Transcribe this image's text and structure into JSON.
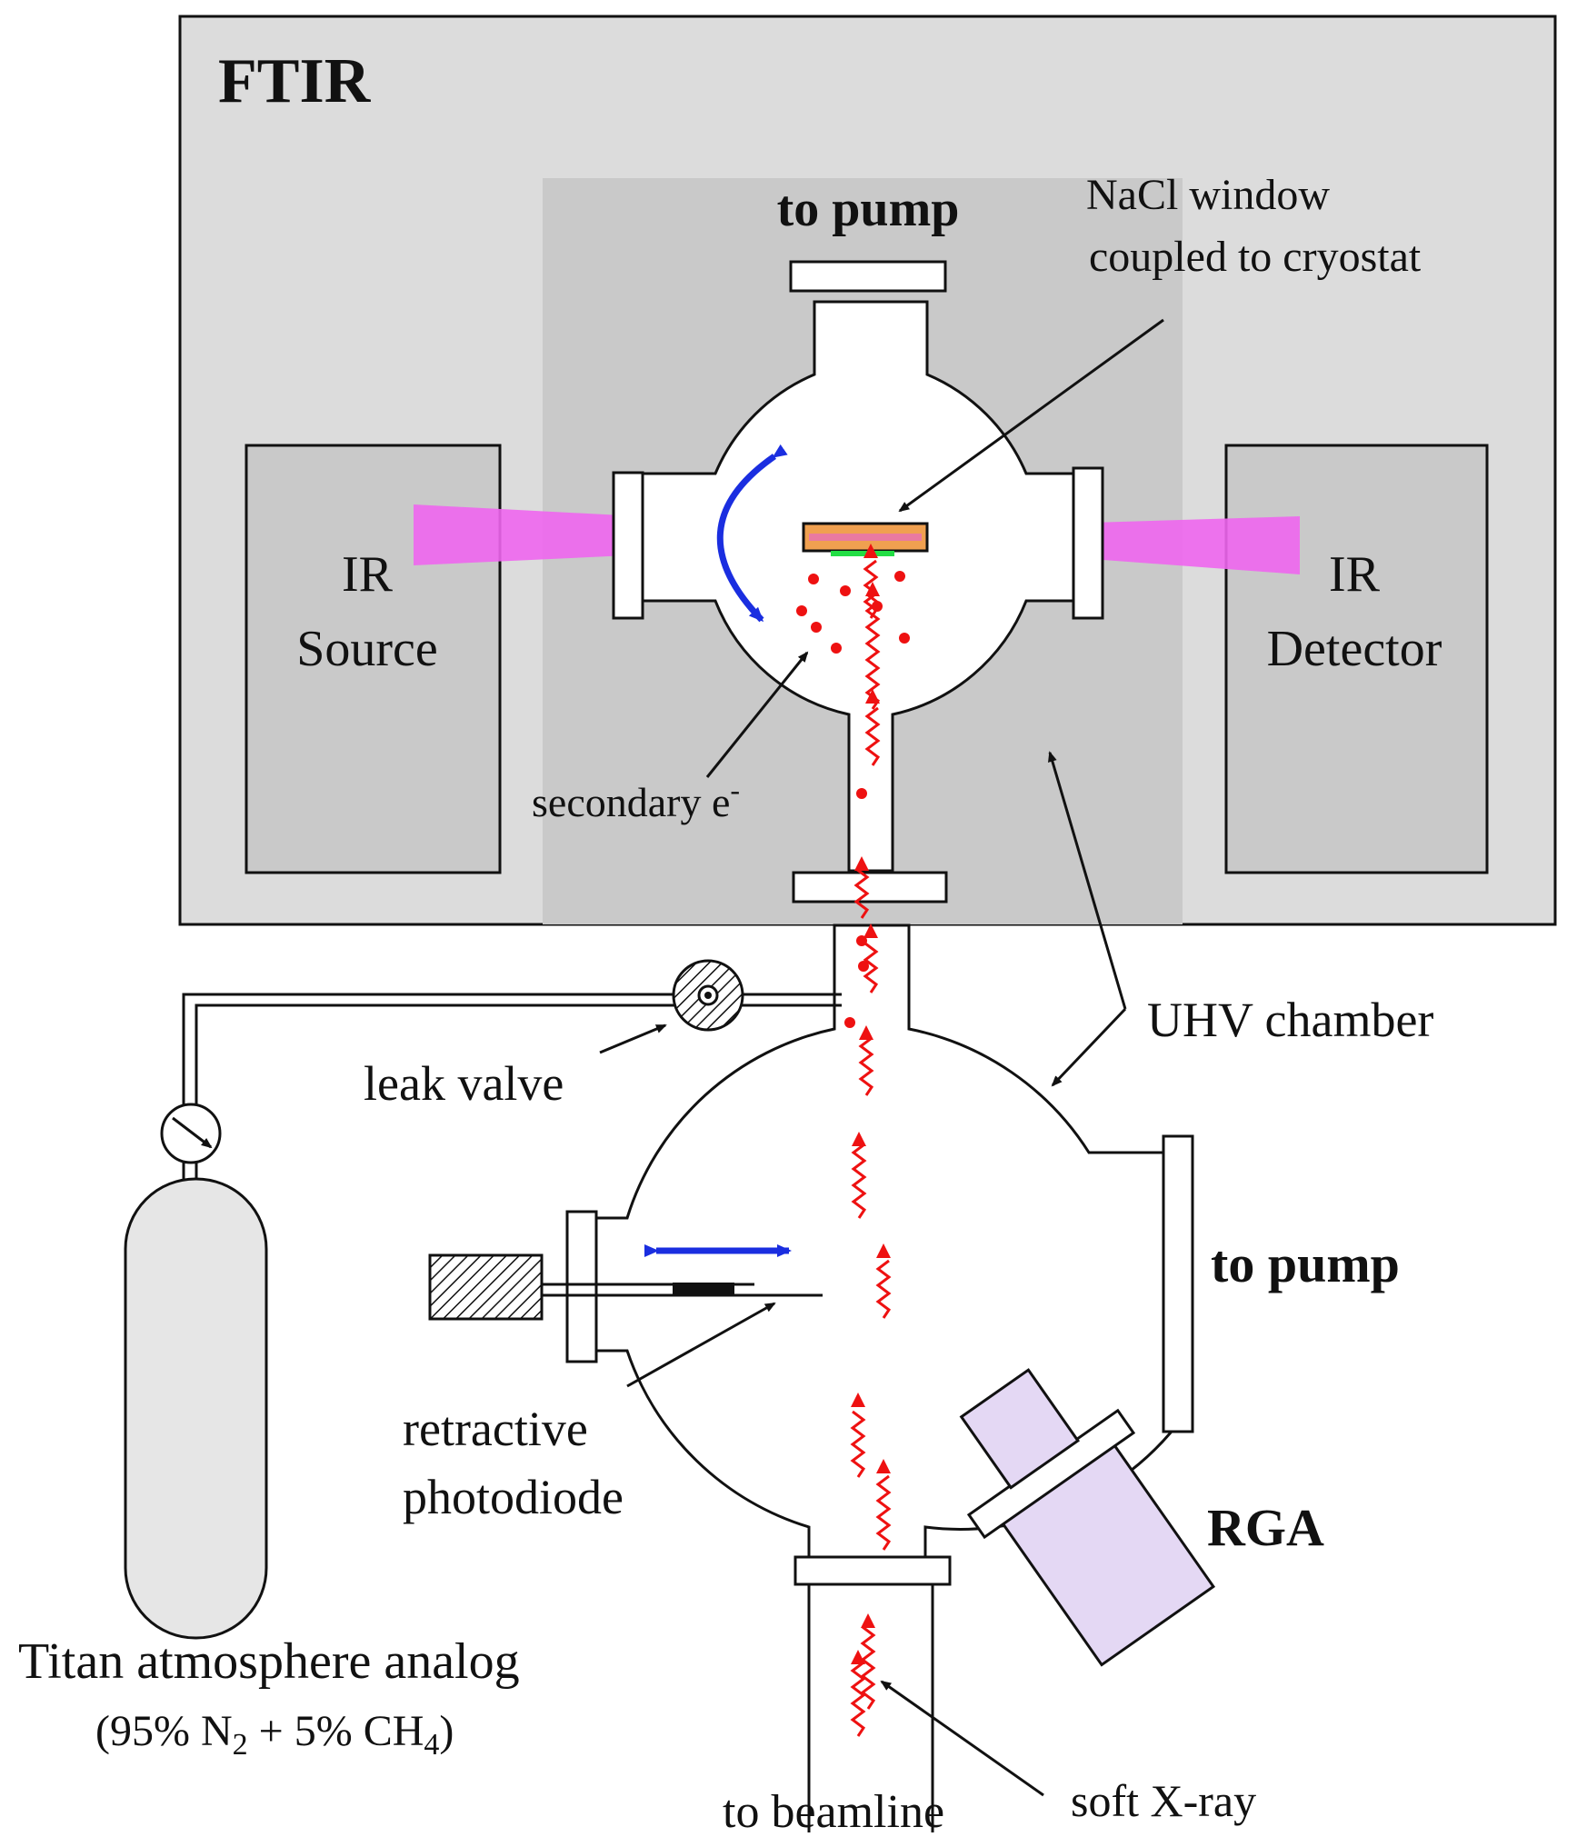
{
  "labels": {
    "ftir": "FTIR",
    "to_pump_top": "to pump",
    "nacl_line1": "NaCl window",
    "nacl_line2": "coupled to cryostat",
    "ir_source_line1": "IR",
    "ir_source_line2": "Source",
    "ir_detector_line1": "IR",
    "ir_detector_line2": "Detector",
    "secondary_e": "secondary e",
    "secondary_e_sup": "-",
    "uhv_chamber": "UHV chamber",
    "leak_valve": "leak valve",
    "to_pump_right": "to pump",
    "rga": "RGA",
    "retractive_line1": "retractive",
    "retractive_line2": "photodiode",
    "titan_line1": "Titan atmosphere analog",
    "titan_line2_a": "(95% N",
    "titan_line2_sub1": "2",
    "titan_line2_b": " + 5% CH",
    "titan_line2_sub2": "4",
    "titan_line2_c": ")",
    "soft_xray": "soft X-ray",
    "to_beamline": "to beamline"
  },
  "colors": {
    "ftir_box": "#dcdcdc",
    "inner_panel": "#c9c9c9",
    "ir_beam": "#ee66ee",
    "xray": "#ee1111",
    "arrow_blue": "#1a2ee0",
    "rga_body": "#e4d8f4",
    "window_orange": "#f0a050",
    "window_pink": "#e97aa0",
    "window_green": "#22dd44"
  }
}
